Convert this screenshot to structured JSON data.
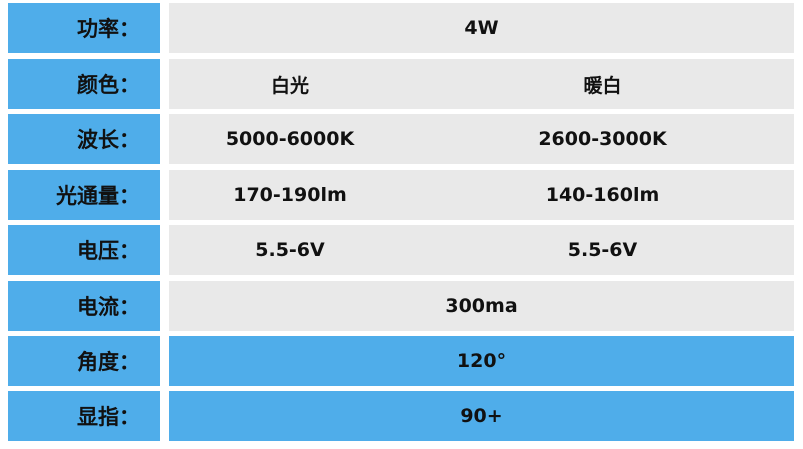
{
  "colors": {
    "label_bg": "#4FADEA",
    "value_bg": "#E9E9E9",
    "highlight_bg": "#4FADEA"
  },
  "rows": [
    {
      "label": "功率：",
      "value": "4W"
    },
    {
      "label": "颜色：",
      "values": [
        "白光",
        "暖白"
      ]
    },
    {
      "label": "波长：",
      "values": [
        "5000-6000K",
        "2600-3000K"
      ]
    },
    {
      "label": "光通量：",
      "values": [
        "170-190lm",
        "140-160lm"
      ]
    },
    {
      "label": "电压：",
      "values": [
        "5.5-6V",
        "5.5-6V"
      ]
    },
    {
      "label": "电流：",
      "value": "300ma"
    },
    {
      "label": "角度：",
      "value": "120°"
    },
    {
      "label": "显指：",
      "value": "90+"
    }
  ]
}
